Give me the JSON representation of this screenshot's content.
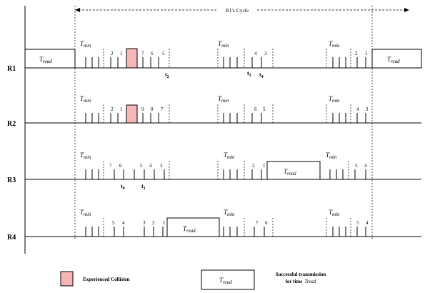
{
  "cycle_label": "R1's Cycle",
  "tmin_label": "T",
  "tmin_sub": "min",
  "tread_label": "T",
  "tread_sub": "read",
  "t_prefix": "t",
  "rows": [
    {
      "label": "R1",
      "numbers": [
        [
          "2",
          "1"
        ],
        [
          "7",
          "6",
          "5"
        ],
        [
          "4",
          "3"
        ],
        [
          "2",
          "1"
        ]
      ],
      "time_markers": [
        "2",
        "3",
        "4"
      ]
    },
    {
      "label": "R2",
      "numbers": [
        [
          "2",
          "1"
        ],
        [
          "9",
          "8",
          "7"
        ],
        [
          "6",
          "5"
        ],
        [
          "4",
          "3"
        ]
      ],
      "time_markers": []
    },
    {
      "label": "R3",
      "numbers": [
        [
          "7",
          "6"
        ],
        [
          "5",
          "4",
          "3"
        ],
        [
          "2",
          "1"
        ],
        [
          "5",
          "4"
        ]
      ],
      "time_markers": [
        "0",
        "1"
      ]
    },
    {
      "label": "R4",
      "numbers": [
        [
          "5",
          "4"
        ],
        [
          "3",
          "2",
          "1"
        ],
        [
          "7",
          "6"
        ],
        [
          "5",
          "4"
        ]
      ],
      "time_markers": []
    }
  ],
  "legend": {
    "collision_label": "Experienced Collision",
    "success_line1": "Successful transmission",
    "success_line2": "for time",
    "success_tread": "Tread"
  },
  "colors": {
    "collision_fill": "#f4b6b6",
    "line": "#000000"
  }
}
